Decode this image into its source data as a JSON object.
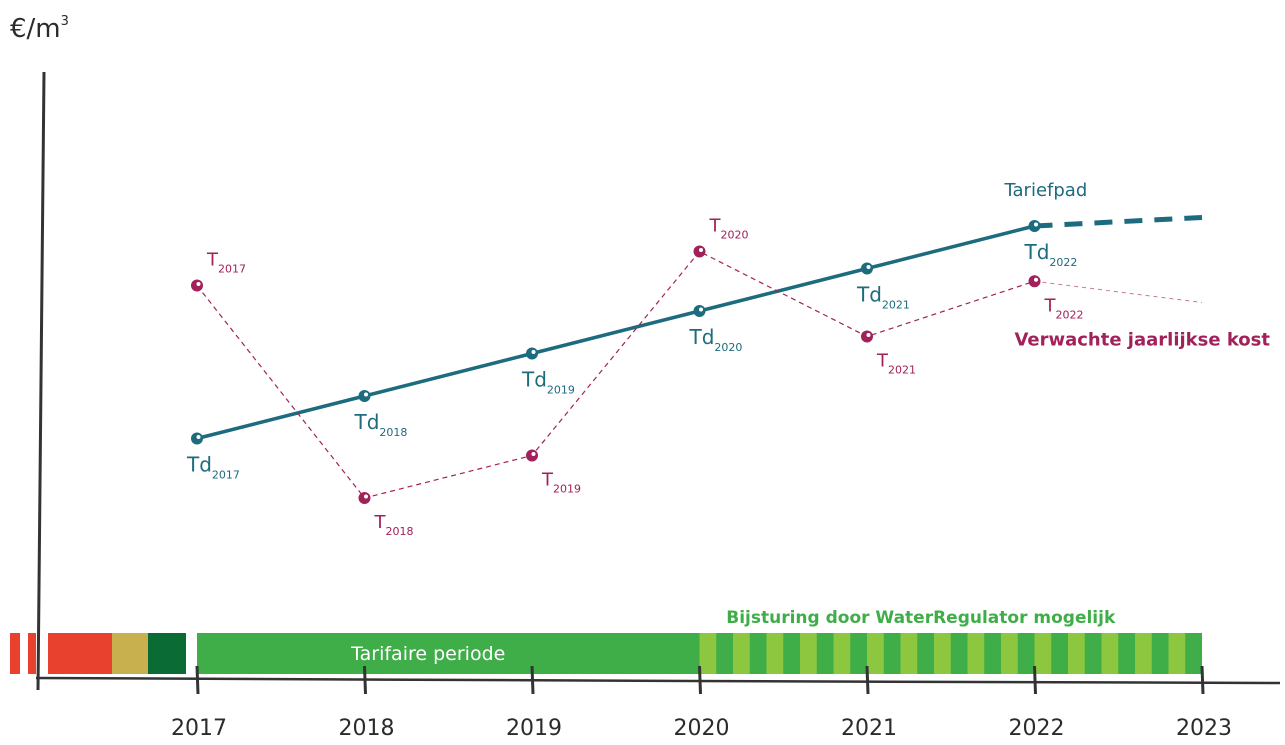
{
  "chart_data": {
    "type": "line",
    "ylabel_main": "€/m",
    "ylabel_exp": "3",
    "x": [
      "2017",
      "2018",
      "2019",
      "2020",
      "2021",
      "2022",
      "2023"
    ],
    "series": [
      {
        "name": "Tariefpad",
        "color": "#1d6b7e",
        "points": [
          {
            "x": "2017",
            "y": 2.7,
            "label_main": "Td",
            "label_sub": "2017"
          },
          {
            "x": "2018",
            "y": 3.2,
            "label_main": "Td",
            "label_sub": "2018"
          },
          {
            "x": "2019",
            "y": 3.7,
            "label_main": "Td",
            "label_sub": "2019"
          },
          {
            "x": "2020",
            "y": 4.2,
            "label_main": "Td",
            "label_sub": "2020"
          },
          {
            "x": "2021",
            "y": 4.7,
            "label_main": "Td",
            "label_sub": "2021"
          },
          {
            "x": "2022",
            "y": 5.2,
            "label_main": "Td",
            "label_sub": "2022"
          }
        ],
        "extension_to": {
          "x": "2023",
          "y": 5.3
        }
      },
      {
        "name": "Verwachte jaarlijkse kost",
        "color": "#a2215a",
        "points": [
          {
            "x": "2017",
            "y": 4.5,
            "label_main": "T",
            "label_sub": "2017"
          },
          {
            "x": "2018",
            "y": 2.0,
            "label_main": "T",
            "label_sub": "2018"
          },
          {
            "x": "2019",
            "y": 2.5,
            "label_main": "T",
            "label_sub": "2019"
          },
          {
            "x": "2020",
            "y": 4.9,
            "label_main": "T",
            "label_sub": "2020"
          },
          {
            "x": "2021",
            "y": 3.9,
            "label_main": "T",
            "label_sub": "2021"
          },
          {
            "x": "2022",
            "y": 4.55,
            "label_main": "T",
            "label_sub": "2022"
          }
        ],
        "extension_to": {
          "x": "2023",
          "y": 4.3
        }
      }
    ],
    "ylim": [
      0,
      6.5
    ],
    "annotations": {
      "tarifaire_periode": "Tarifaire  periode",
      "bijsturing": "Bijsturing door WaterRegulator mogelijk",
      "tarifaire_start": "2017",
      "tarifaire_end": "2020",
      "bijsturing_start": "2020",
      "bijsturing_end": "2023"
    },
    "colors": {
      "axis": "#333333",
      "tick_label": "#2b2b2b",
      "period_green": "#3fae49",
      "bijsturing_text": "#3fae49",
      "stripe_light": "#8dc63f",
      "stripe_dark": "#3fae49",
      "red": "#e8412d",
      "olive": "#c8b04e",
      "dark_green": "#0b6b35"
    },
    "grid": false
  }
}
